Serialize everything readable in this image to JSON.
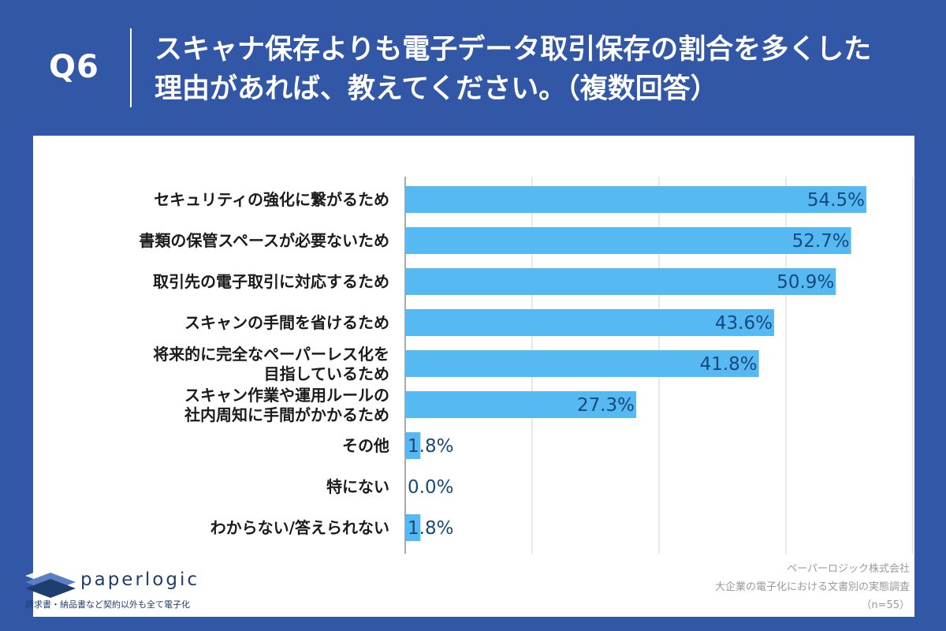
{
  "header": {
    "question_number": "Q6",
    "title_line1": "スキャナ保存よりも電子データ取引保存の割合を多くした",
    "title_line2": "理由があれば、教えてください。（複数回答）"
  },
  "colors": {
    "header_bg": "#3257a6",
    "bar": "#57b9f1",
    "value_text": "#16497d",
    "grid": "#d3d3d3"
  },
  "chart_data": {
    "type": "bar",
    "orientation": "horizontal",
    "categories": [
      [
        "セキュリティの強化に繋がるため"
      ],
      [
        "書類の保管スペースが必要ないため"
      ],
      [
        "取引先の電子取引に対応するため"
      ],
      [
        "スキャンの手間を省けるため"
      ],
      [
        "将来的に完全なペーパーレス化を",
        "目指しているため"
      ],
      [
        "スキャン作業や運用ルールの",
        "社内周知に手間がかかるため"
      ],
      [
        "その他"
      ],
      [
        "特にない"
      ],
      [
        "わからない/答えられない"
      ]
    ],
    "values": [
      54.5,
      52.7,
      50.9,
      43.6,
      41.8,
      27.3,
      1.8,
      0.0,
      1.8
    ],
    "value_labels": [
      "54.5%",
      "52.7%",
      "50.9%",
      "43.6%",
      "41.8%",
      "27.3%",
      "1.8%",
      "0.0%",
      "1.8%"
    ],
    "xlim": [
      0,
      60
    ],
    "grid": true,
    "grid_step": 15
  },
  "logo": {
    "wordmark": "paperlogic",
    "tagline": "請求書・納品書など契約以外も全て電子化"
  },
  "source": {
    "line1": "ペーパーロジック株式会社",
    "line2": "大企業の電子化における文書別の実態調査",
    "line3": "（n=55）"
  }
}
